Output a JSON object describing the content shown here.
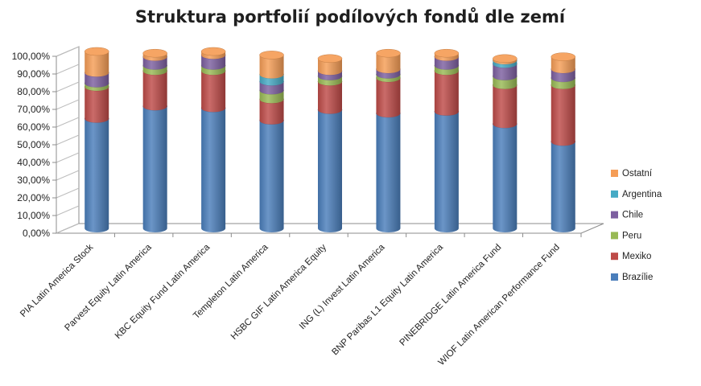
{
  "chart_data": {
    "type": "bar",
    "stacked": true,
    "three_d": true,
    "title": "Struktura portfolií podílových fondů dle zemí",
    "xlabel": "",
    "ylabel": "",
    "ylim": [
      0,
      1
    ],
    "y_ticks": [
      "0,00%",
      "10,00%",
      "20,00%",
      "30,00%",
      "40,00%",
      "50,00%",
      "60,00%",
      "70,00%",
      "80,00%",
      "90,00%",
      "100,00%"
    ],
    "grid": false,
    "legend_position": "right",
    "categories": [
      "PIA Latin America Stock",
      "Parvest Equity Latin America",
      "KBC Equity Fund Latin America",
      "Templeton Latin America",
      "HSBC GIF Latin America Equity",
      "ING (L) Invest Latin America",
      "BNP Paribas L1 Equity Latin America",
      "PINEBRIDGE Latin America Fund",
      "WIOF Latin American Performance Fund"
    ],
    "series": [
      {
        "name": "Brazílie",
        "color": "#4a7ebb",
        "values": [
          0.62,
          0.69,
          0.68,
          0.61,
          0.67,
          0.65,
          0.66,
          0.59,
          0.49
        ]
      },
      {
        "name": "Mexiko",
        "color": "#be4b48",
        "values": [
          0.18,
          0.2,
          0.21,
          0.12,
          0.16,
          0.2,
          0.23,
          0.22,
          0.32
        ]
      },
      {
        "name": "Peru",
        "color": "#98b954",
        "values": [
          0.02,
          0.03,
          0.03,
          0.05,
          0.03,
          0.02,
          0.03,
          0.05,
          0.04
        ]
      },
      {
        "name": "Chile",
        "color": "#7d5fa0",
        "values": [
          0.06,
          0.05,
          0.06,
          0.05,
          0.03,
          0.03,
          0.05,
          0.07,
          0.05
        ]
      },
      {
        "name": "Argentina",
        "color": "#46aac5",
        "values": [
          0.0,
          0.0,
          0.0,
          0.04,
          0.0,
          0.0,
          0.0,
          0.02,
          0.0
        ]
      },
      {
        "name": "Ostatní",
        "color": "#f59d56",
        "values": [
          0.12,
          0.02,
          0.02,
          0.11,
          0.07,
          0.09,
          0.02,
          0.01,
          0.07
        ]
      }
    ]
  }
}
